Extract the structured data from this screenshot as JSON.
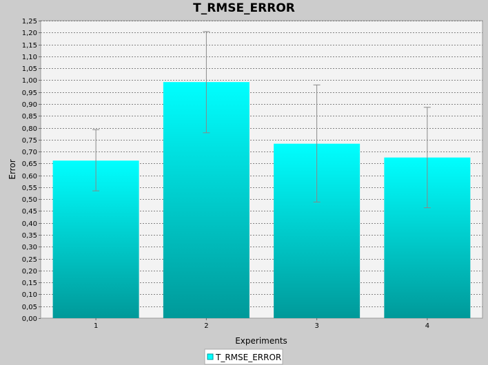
{
  "colors": {
    "background": "#cccccc",
    "plot_background": "#f3f3f3",
    "bar_top": "#00ffff",
    "bar_bottom": "#009999",
    "error_bar": "#888888",
    "grid": "#808080"
  },
  "chart_data": {
    "type": "bar",
    "title": "T_RMSE_ERROR",
    "xlabel": "Experiments",
    "ylabel": "Error",
    "categories": [
      "1",
      "2",
      "3",
      "4"
    ],
    "series": [
      {
        "name": "T_RMSE_ERROR",
        "values": [
          0.662,
          0.992,
          0.733,
          0.675
        ],
        "error_low": [
          0.535,
          0.779,
          0.488,
          0.464
        ],
        "error_high": [
          0.792,
          1.204,
          0.98,
          0.886
        ]
      }
    ],
    "ylim": [
      0,
      1.25
    ],
    "ytick_step": 0.05,
    "ytick_labels": [
      "0,00",
      "0,05",
      "0,10",
      "0,15",
      "0,20",
      "0,25",
      "0,30",
      "0,35",
      "0,40",
      "0,45",
      "0,50",
      "0,55",
      "0,60",
      "0,65",
      "0,70",
      "0,75",
      "0,80",
      "0,85",
      "0,90",
      "0,95",
      "1,00",
      "1,05",
      "1,10",
      "1,15",
      "1,20",
      "1,25"
    ],
    "grid": true,
    "legend_position": "bottom"
  }
}
